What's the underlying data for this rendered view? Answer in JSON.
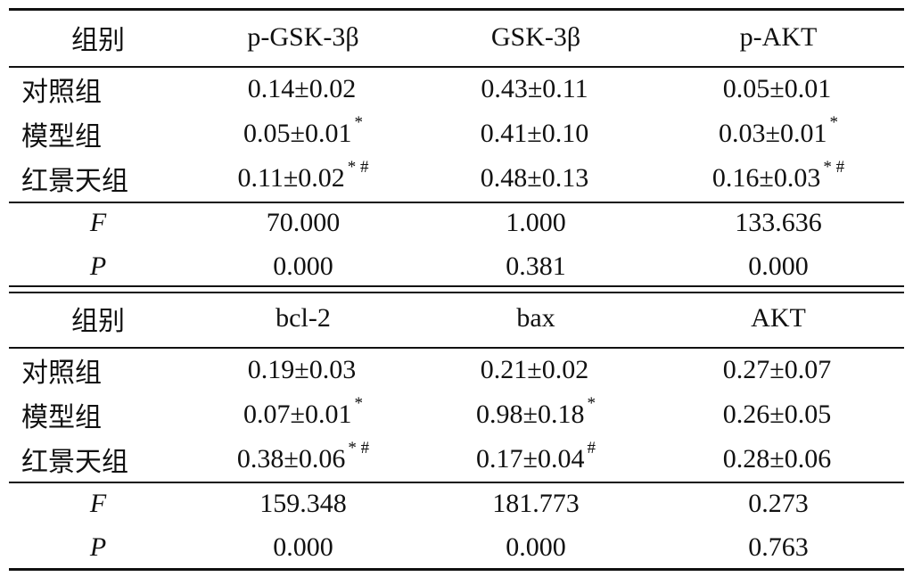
{
  "tables": [
    {
      "header": [
        "组别",
        "p-GSK-3β",
        "GSK-3β",
        "p-AKT"
      ],
      "rows": [
        [
          {
            "v": "对照组"
          },
          {
            "v": "0.14±0.02",
            "m": ""
          },
          {
            "v": "0.43±0.11",
            "m": ""
          },
          {
            "v": "0.05±0.01",
            "m": ""
          }
        ],
        [
          {
            "v": "模型组"
          },
          {
            "v": "0.05±0.01",
            "m": "*"
          },
          {
            "v": "0.41±0.10",
            "m": ""
          },
          {
            "v": "0.03±0.01",
            "m": "*"
          }
        ],
        [
          {
            "v": "红景天组"
          },
          {
            "v": "0.11±0.02",
            "m": "* #"
          },
          {
            "v": "0.48±0.13",
            "m": ""
          },
          {
            "v": "0.16±0.03",
            "m": "* #"
          }
        ]
      ],
      "stats": [
        [
          "F",
          "70.000",
          "1.000",
          "133.636"
        ],
        [
          "P",
          "0.000",
          "0.381",
          "0.000"
        ]
      ]
    },
    {
      "header": [
        "组别",
        "bcl-2",
        "bax",
        "AKT"
      ],
      "rows": [
        [
          {
            "v": "对照组"
          },
          {
            "v": "0.19±0.03",
            "m": ""
          },
          {
            "v": "0.21±0.02",
            "m": ""
          },
          {
            "v": "0.27±0.07",
            "m": ""
          }
        ],
        [
          {
            "v": "模型组"
          },
          {
            "v": "0.07±0.01",
            "m": "*"
          },
          {
            "v": "0.98±0.18",
            "m": "*"
          },
          {
            "v": "0.26±0.05",
            "m": ""
          }
        ],
        [
          {
            "v": "红景天组"
          },
          {
            "v": "0.38±0.06",
            "m": "* #"
          },
          {
            "v": "0.17±0.04",
            "m": "#"
          },
          {
            "v": "0.28±0.06",
            "m": ""
          }
        ]
      ],
      "stats": [
        [
          "F",
          "159.348",
          "181.773",
          "0.273"
        ],
        [
          "P",
          "0.000",
          "0.000",
          "0.763"
        ]
      ]
    }
  ]
}
